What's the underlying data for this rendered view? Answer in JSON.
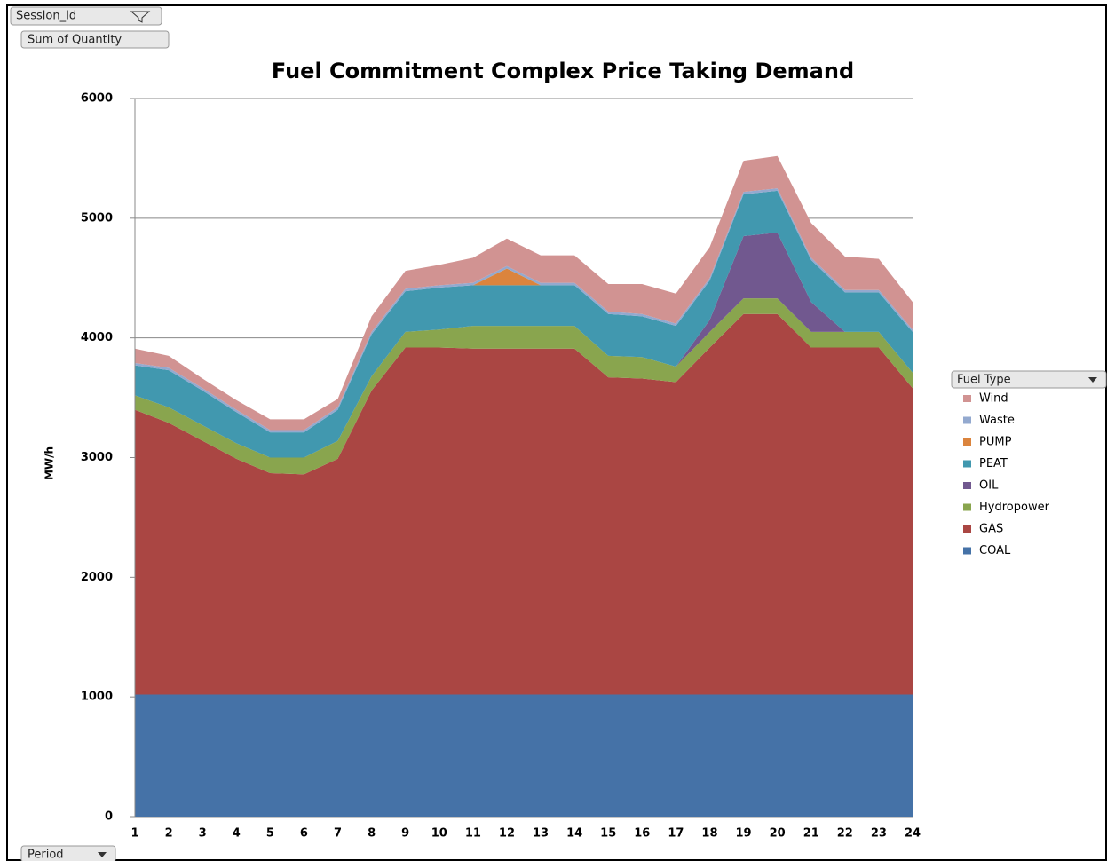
{
  "ui": {
    "session_button": "Session_Id",
    "measure_button": "Sum of Quantity",
    "axis_button": "Period",
    "legend_button": "Fuel Type"
  },
  "chart_data": {
    "type": "stacked_area",
    "title": "Fuel Commitment Complex  Price Taking Demand",
    "y_label": "MW/h",
    "categories": [
      1,
      2,
      3,
      4,
      5,
      6,
      7,
      8,
      9,
      10,
      11,
      12,
      13,
      14,
      15,
      16,
      17,
      18,
      19,
      20,
      21,
      22,
      23,
      24
    ],
    "ylim": [
      0,
      6000
    ],
    "yticks": [
      0,
      1000,
      2000,
      3000,
      4000,
      5000,
      6000
    ],
    "grid": true,
    "series": [
      {
        "name": "COAL",
        "color": "#4572a7",
        "values": [
          1020,
          1020,
          1020,
          1020,
          1020,
          1020,
          1020,
          1020,
          1020,
          1020,
          1020,
          1020,
          1020,
          1020,
          1020,
          1020,
          1020,
          1020,
          1020,
          1020,
          1020,
          1020,
          1020,
          1020
        ]
      },
      {
        "name": "GAS",
        "color": "#aa4643",
        "values": [
          2380,
          2270,
          2120,
          1970,
          1850,
          1840,
          1970,
          2540,
          2900,
          2900,
          2890,
          2890,
          2890,
          2890,
          2650,
          2640,
          2610,
          2900,
          3180,
          3180,
          2900,
          2900,
          2900,
          2560
        ]
      },
      {
        "name": "Hydropower",
        "color": "#89a54e",
        "values": [
          120,
          130,
          130,
          130,
          130,
          140,
          150,
          120,
          130,
          150,
          190,
          190,
          190,
          190,
          180,
          180,
          130,
          130,
          130,
          130,
          130,
          130,
          130,
          130
        ]
      },
      {
        "name": "OIL",
        "color": "#71588f",
        "values": [
          0,
          0,
          0,
          0,
          0,
          0,
          0,
          0,
          0,
          0,
          0,
          0,
          0,
          0,
          0,
          0,
          0,
          100,
          520,
          550,
          250,
          0,
          0,
          0
        ]
      },
      {
        "name": "PEAT",
        "color": "#4198af",
        "values": [
          250,
          310,
          290,
          260,
          210,
          210,
          260,
          350,
          340,
          350,
          340,
          340,
          340,
          340,
          350,
          340,
          340,
          330,
          350,
          350,
          350,
          330,
          330,
          340
        ]
      },
      {
        "name": "PUMP",
        "color": "#db843d",
        "values": [
          0,
          0,
          0,
          0,
          0,
          0,
          0,
          0,
          0,
          0,
          0,
          140,
          0,
          0,
          0,
          0,
          0,
          0,
          0,
          0,
          0,
          0,
          0,
          0
        ]
      },
      {
        "name": "Waste",
        "color": "#93a9cf",
        "values": [
          20,
          20,
          20,
          20,
          20,
          20,
          20,
          20,
          20,
          20,
          20,
          20,
          20,
          20,
          20,
          20,
          20,
          20,
          20,
          20,
          20,
          20,
          20,
          20
        ]
      },
      {
        "name": "Wind",
        "color": "#d19392",
        "values": [
          120,
          100,
          80,
          80,
          90,
          90,
          70,
          130,
          150,
          170,
          210,
          230,
          230,
          230,
          230,
          250,
          250,
          260,
          260,
          270,
          290,
          280,
          260,
          230
        ]
      }
    ]
  }
}
